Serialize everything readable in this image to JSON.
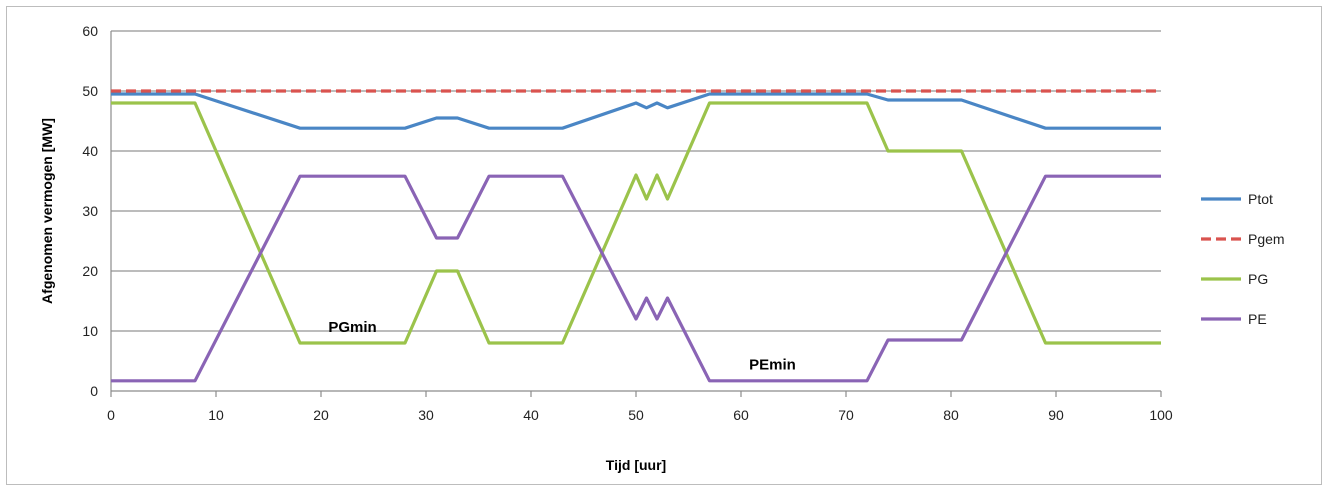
{
  "chart_data": {
    "type": "line",
    "xlabel": "Tijd [uur]",
    "ylabel": "Afgenomen vermogen [MW]",
    "xlim": [
      0,
      100
    ],
    "ylim": [
      0,
      60
    ],
    "xticks": [
      0,
      10,
      20,
      30,
      40,
      50,
      60,
      70,
      80,
      90,
      100
    ],
    "yticks": [
      0,
      10,
      20,
      30,
      40,
      50,
      60
    ],
    "grid": "horizontal",
    "legend_position": "right",
    "series": [
      {
        "name": "Ptot",
        "color": "#4a86c5",
        "dash": "solid",
        "points": [
          [
            0,
            49.5
          ],
          [
            8,
            49.5
          ],
          [
            18,
            43.8
          ],
          [
            28,
            43.8
          ],
          [
            31,
            45.5
          ],
          [
            33,
            45.5
          ],
          [
            36,
            43.8
          ],
          [
            43,
            43.8
          ],
          [
            50,
            48
          ],
          [
            51,
            47.2
          ],
          [
            52,
            48
          ],
          [
            53,
            47.2
          ],
          [
            57,
            49.5
          ],
          [
            72,
            49.5
          ],
          [
            74,
            48.5
          ],
          [
            81,
            48.5
          ],
          [
            89,
            43.8
          ],
          [
            100,
            43.8
          ]
        ]
      },
      {
        "name": "Pgem",
        "color": "#d9534f",
        "dash": "dashed",
        "points": [
          [
            0,
            50
          ],
          [
            100,
            50
          ]
        ]
      },
      {
        "name": "PG",
        "color": "#9bc34b",
        "dash": "solid",
        "points": [
          [
            0,
            48
          ],
          [
            8,
            48
          ],
          [
            18,
            8
          ],
          [
            28,
            8
          ],
          [
            31,
            20
          ],
          [
            33,
            20
          ],
          [
            36,
            8
          ],
          [
            43,
            8
          ],
          [
            50,
            36
          ],
          [
            51,
            32
          ],
          [
            52,
            36
          ],
          [
            53,
            32
          ],
          [
            57,
            48
          ],
          [
            72,
            48
          ],
          [
            74,
            40
          ],
          [
            81,
            40
          ],
          [
            89,
            8
          ],
          [
            100,
            8
          ]
        ]
      },
      {
        "name": "PE",
        "color": "#8a64b5",
        "dash": "solid",
        "points": [
          [
            0,
            1.7
          ],
          [
            8,
            1.7
          ],
          [
            18,
            35.8
          ],
          [
            28,
            35.8
          ],
          [
            31,
            25.5
          ],
          [
            33,
            25.5
          ],
          [
            36,
            35.8
          ],
          [
            43,
            35.8
          ],
          [
            50,
            12
          ],
          [
            51,
            15.5
          ],
          [
            52,
            12
          ],
          [
            53,
            15.5
          ],
          [
            57,
            1.7
          ],
          [
            72,
            1.7
          ],
          [
            74,
            8.5
          ],
          [
            81,
            8.5
          ],
          [
            89,
            35.8
          ],
          [
            100,
            35.8
          ]
        ]
      }
    ],
    "annotations": [
      {
        "text": "PGmin",
        "x": 23,
        "y": 8.8
      },
      {
        "text": "PEmin",
        "x": 63,
        "y": 2.6
      }
    ]
  }
}
